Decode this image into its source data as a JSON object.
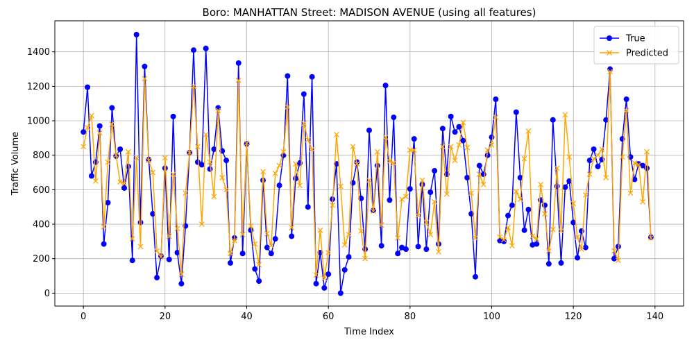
{
  "chart_data": {
    "type": "line",
    "title": "Boro: MANHATTAN Street: MADISON AVENUE (using all features)",
    "xlabel": "Time Index",
    "ylabel": "Traffic Volume",
    "xlim": [
      -7,
      147
    ],
    "ylim": [
      -75,
      1580
    ],
    "xticks": [
      0,
      20,
      40,
      60,
      80,
      100,
      120,
      140
    ],
    "yticks": [
      0,
      200,
      400,
      600,
      800,
      1000,
      1200,
      1400
    ],
    "grid": true,
    "legend_position": "top-right",
    "x": [
      0,
      1,
      2,
      3,
      4,
      5,
      6,
      7,
      8,
      9,
      10,
      11,
      12,
      13,
      14,
      15,
      16,
      17,
      18,
      19,
      20,
      21,
      22,
      23,
      24,
      25,
      26,
      27,
      28,
      29,
      30,
      31,
      32,
      33,
      34,
      35,
      36,
      37,
      38,
      39,
      40,
      41,
      42,
      43,
      44,
      45,
      46,
      47,
      48,
      49,
      50,
      51,
      52,
      53,
      54,
      55,
      56,
      57,
      58,
      59,
      60,
      61,
      62,
      63,
      64,
      65,
      66,
      67,
      68,
      69,
      70,
      71,
      72,
      73,
      74,
      75,
      76,
      77,
      78,
      79,
      80,
      81,
      82,
      83,
      84,
      85,
      86,
      87,
      88,
      89,
      90,
      91,
      92,
      93,
      94,
      95,
      96,
      97,
      98,
      99,
      100,
      101,
      102,
      103,
      104,
      105,
      106,
      107,
      108,
      109,
      110,
      111,
      112,
      113,
      114,
      115,
      116,
      117,
      118,
      119,
      120,
      121,
      122,
      123,
      124,
      125,
      126,
      127,
      128,
      129,
      130,
      131,
      132,
      133,
      134,
      135,
      136,
      137,
      138,
      139
    ],
    "series": [
      {
        "name": "True",
        "color": "#0000ff",
        "marker": "circle",
        "values": [
          935,
          1195,
          680,
          760,
          970,
          285,
          525,
          1075,
          795,
          835,
          610,
          735,
          190,
          1500,
          410,
          1315,
          775,
          460,
          90,
          215,
          725,
          195,
          1025,
          235,
          55,
          390,
          815,
          1410,
          760,
          745,
          1420,
          720,
          835,
          1075,
          825,
          770,
          175,
          320,
          1335,
          230,
          865,
          365,
          140,
          70,
          655,
          265,
          230,
          315,
          625,
          800,
          1260,
          330,
          665,
          755,
          1155,
          500,
          1255,
          55,
          235,
          30,
          110,
          545,
          750,
          0,
          135,
          210,
          640,
          760,
          550,
          255,
          945,
          480,
          740,
          275,
          1205,
          540,
          1020,
          230,
          265,
          255,
          605,
          895,
          270,
          630,
          255,
          585,
          710,
          285,
          955,
          690,
          1025,
          935,
          965,
          885,
          670,
          460,
          95,
          740,
          690,
          800,
          905,
          1125,
          305,
          300,
          450,
          510,
          1050,
          670,
          365,
          485,
          280,
          285,
          540,
          510,
          170,
          1005,
          620,
          175,
          615,
          650,
          410,
          205,
          360,
          265,
          770,
          835,
          735,
          775,
          1005,
          1300,
          200,
          270,
          895,
          1125,
          790,
          660,
          750,
          740,
          725,
          325
        ]
      },
      {
        "name": "Predicted",
        "color": "#ffa500",
        "marker": "x",
        "values": [
          850,
          960,
          1030,
          650,
          930,
          385,
          760,
          980,
          800,
          645,
          635,
          820,
          315,
          785,
          270,
          1245,
          770,
          700,
          245,
          210,
          785,
          330,
          690,
          375,
          110,
          580,
          815,
          1200,
          850,
          400,
          920,
          760,
          560,
          1060,
          670,
          600,
          230,
          305,
          1235,
          340,
          870,
          390,
          285,
          165,
          705,
          345,
          275,
          695,
          740,
          820,
          1080,
          380,
          750,
          625,
          985,
          890,
          835,
          105,
          365,
          85,
          235,
          510,
          920,
          620,
          280,
          340,
          850,
          750,
          360,
          200,
          655,
          475,
          820,
          395,
          905,
          765,
          755,
          320,
          545,
          560,
          830,
          830,
          450,
          655,
          410,
          340,
          530,
          240,
          850,
          575,
          850,
          770,
          860,
          990,
          845,
          580,
          320,
          690,
          630,
          830,
          860,
          1020,
          325,
          310,
          380,
          275,
          590,
          545,
          780,
          940,
          330,
          315,
          630,
          460,
          245,
          370,
          725,
          360,
          1035,
          790,
          520,
          325,
          255,
          570,
          690,
          780,
          800,
          835,
          670,
          1285,
          245,
          190,
          790,
          1060,
          580,
          755,
          745,
          530,
          820,
          320
        ]
      }
    ]
  }
}
